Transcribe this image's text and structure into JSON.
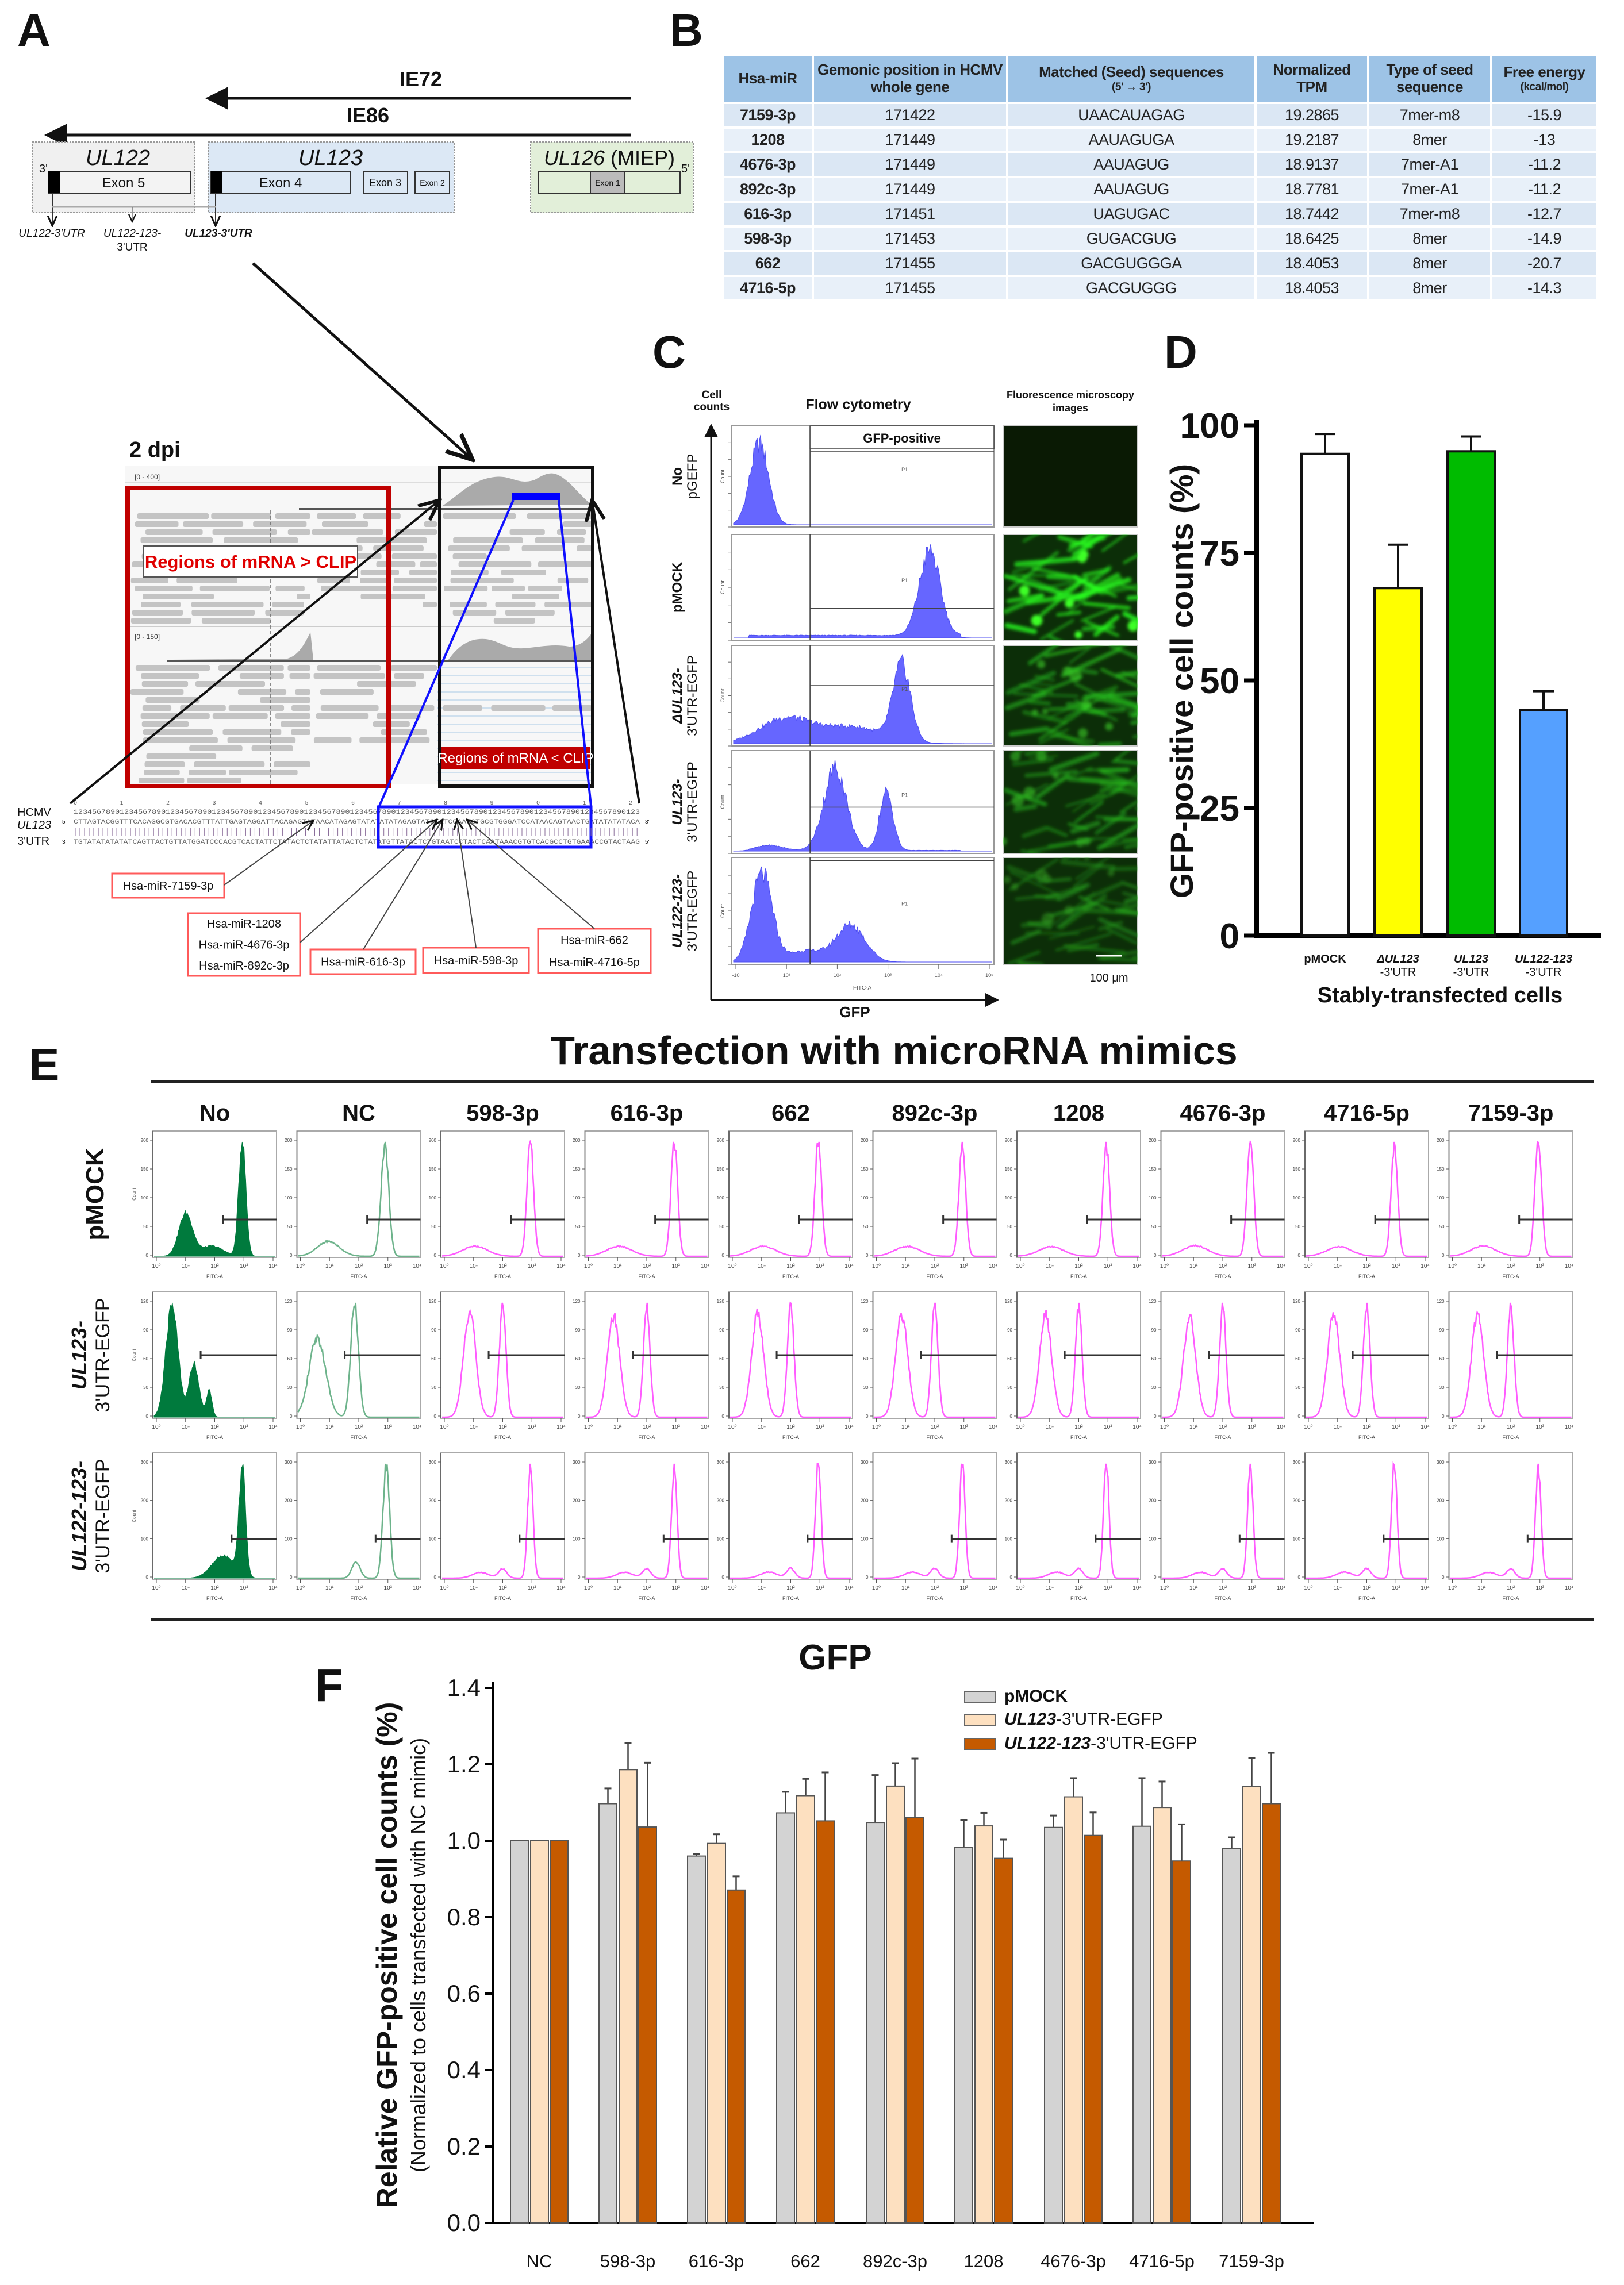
{
  "labels": {
    "A": "A",
    "B": "B",
    "C": "C",
    "D": "D",
    "E": "E",
    "F": "F"
  },
  "panel_a": {
    "ie72": "IE72",
    "ie86": "IE86",
    "ul122": "UL122",
    "ul123": "UL123",
    "ul126": "UL126",
    "ul126_suffix": "(MIEP)",
    "end3": "3'",
    "end5": "5'",
    "exons": [
      "Exon 5",
      "Exon 4",
      "Exon 3",
      "Exon 2",
      "Exon 1"
    ],
    "utr_labels": {
      "ul122": "UL122-3'UTR",
      "ul122_123_l1": "UL122-123-",
      "ul122_123_l2": "3'UTR",
      "ul123": "UL123-3'UTR"
    },
    "igv": {
      "dpi": "2 dpi",
      "range_top": "[0 - 400]",
      "range_bottom": "[0 - 150]",
      "label_more": "Regions of mRNA > CLIP",
      "label_less": "Regions of mRNA < CLIP"
    },
    "sequence": {
      "row_labels": [
        "HCMV",
        "UL123",
        "3'UTR"
      ],
      "ruler_digits": [
        "0",
        "1",
        "2",
        "3",
        "4",
        "5",
        "6",
        "7",
        "8",
        "9",
        "0",
        "1",
        "2"
      ],
      "ruler": "123456789012345678901234567890123456789012345678901234567890123456789012345678901234567890123456789012345678901234567890123",
      "top": "CTTAGTACGGTTTCACAGGCGTGACACGTTTATTGAGTAGGATTACAGAGTATAACATAGAGTATATATATAGAGTATCTATCCAATGTGCGTGGGATCCATAACAGTAACTGATATATATACA",
      "bottom": "TGTATATATATATCAGTTACTGTTATGGATCCCACGTCACTATTCTATACTCTATATTATACTCTATATGTTATACTCTGTAATCCTACTCAATAAACGTGTCACGCCTGTGAAACCGTACTAAG",
      "end5": "5'",
      "end3": "3'"
    },
    "mir_boxes": [
      [
        "Hsa-miR-7159-3p"
      ],
      [
        "Hsa-miR-1208",
        "Hsa-miR-4676-3p",
        "Hsa-miR-892c-3p"
      ],
      [
        "Hsa-miR-616-3p"
      ],
      [
        "Hsa-miR-598-3p"
      ],
      [
        "Hsa-miR-662",
        "Hsa-miR-4716-5p"
      ]
    ]
  },
  "panel_b": {
    "headers": [
      {
        "main": "Hsa-miR",
        "sub": ""
      },
      {
        "main": "Gemonic position in HCMV whole gene",
        "sub": ""
      },
      {
        "main": "Matched (Seed) sequences",
        "sub": "(5' → 3')"
      },
      {
        "main": "Normalized TPM",
        "sub": ""
      },
      {
        "main": "Type of seed sequence",
        "sub": ""
      },
      {
        "main": "Free energy",
        "sub": "(kcal/mol)"
      }
    ],
    "rows": [
      [
        "7159-3p",
        "171422",
        "UAACAUAGAG",
        "19.2865",
        "7mer-m8",
        "-15.9"
      ],
      [
        "1208",
        "171449",
        "AAUAGUGA",
        "19.2187",
        "8mer",
        "-13"
      ],
      [
        "4676-3p",
        "171449",
        "AAUAGUG",
        "18.9137",
        "7mer-A1",
        "-11.2"
      ],
      [
        "892c-3p",
        "171449",
        "AAUAGUG",
        "18.7781",
        "7mer-A1",
        "-11.2"
      ],
      [
        "616-3p",
        "171451",
        "UAGUGAC",
        "18.7442",
        "7mer-m8",
        "-12.7"
      ],
      [
        "598-3p",
        "171453",
        "GUGACGUG",
        "18.6425",
        "8mer",
        "-14.9"
      ],
      [
        "662",
        "171455",
        "GACGUGGGA",
        "18.4053",
        "8mer",
        "-20.7"
      ],
      [
        "4716-5p",
        "171455",
        "GACGUGGG",
        "18.4053",
        "8mer",
        "-14.3"
      ]
    ]
  },
  "panel_c": {
    "y_axis": [
      "Cell",
      "counts"
    ],
    "title": "Flow cytometry",
    "micro_title": [
      "Fluorescence microscopy",
      "images"
    ],
    "gate_label": "GFP-positive",
    "gate_name": "P1",
    "count_label": "Count",
    "fitc_label": "FITC-A",
    "x_axis": "GFP",
    "scale_bar": "100 μm",
    "x_ticks": [
      "-10",
      "10¹",
      "10²",
      "10³",
      "10⁴",
      "10⁵"
    ],
    "x_range_log": [
      -0.5,
      4.5
    ],
    "gate_log": 1.0,
    "fill_color": "#6666ff",
    "rows": [
      {
        "l1": "No",
        "l2": "pGEFP",
        "l1_italic": false,
        "peaks": [
          [
            0.0,
            1.0,
            0.18
          ]
        ],
        "floor": 0.0,
        "gate_level": 0.75
      },
      {
        "l1": "pMOCK",
        "l2": "",
        "l1_italic": false,
        "peaks": [
          [
            3.3,
            1.0,
            0.2
          ]
        ],
        "floor": 0.03,
        "gate_level": 0.3
      },
      {
        "l1": "ΔUL123-",
        "l2": "3'UTR-EGFP",
        "l1_italic": true,
        "peaks": [
          [
            2.76,
            1.0,
            0.17
          ],
          [
            0.5,
            0.33,
            0.5
          ],
          [
            1.8,
            0.22,
            0.6
          ]
        ],
        "floor": 0.0,
        "gate_level": 0.6
      },
      {
        "l1": "UL123-",
        "l2": "3'UTR-EGFP",
        "l1_italic": true,
        "peaks": [
          [
            1.47,
            1.0,
            0.22
          ],
          [
            2.46,
            0.7,
            0.13
          ],
          [
            0.2,
            0.06,
            0.25
          ]
        ],
        "floor": 0.01,
        "gate_level": 0.45
      },
      {
        "l1": "UL122-123-",
        "l2": "3'UTR-EGFP",
        "l1_italic": true,
        "peaks": [
          [
            0.05,
            1.0,
            0.2
          ],
          [
            1.77,
            0.42,
            0.28
          ],
          [
            0.9,
            0.13,
            0.35
          ]
        ],
        "floor": 0.0,
        "gate_level": 0.97
      }
    ],
    "micro_brightness": [
      0.05,
      1.0,
      0.6,
      0.55,
      0.4
    ]
  },
  "panel_e": {
    "title": "Transfection with microRNA mimics",
    "columns": [
      "No",
      "NC",
      "598-3p",
      "616-3p",
      "662",
      "892c-3p",
      "1208",
      "4676-3p",
      "4716-5p",
      "7159-3p"
    ],
    "count_label": "Count",
    "fitc_label": "FITC-A",
    "x_ticks": [
      "10⁰",
      "10¹",
      "10²",
      "10³",
      "10⁴"
    ],
    "x_range_log": [
      -0.2,
      4.2
    ],
    "colors": {
      "no_fill": "#007a3d",
      "nc_line": "#6db38b",
      "mimic_line": "#ff5cff"
    },
    "rows": [
      {
        "l1": "pMOCK",
        "l2": "",
        "y_ticks": [
          "0",
          "50",
          "100",
          "150",
          "200"
        ],
        "no": [
          [
            0.95,
            0.33,
            0.25
          ],
          [
            3.0,
            0.9,
            0.13
          ],
          [
            1.9,
            0.08,
            0.4
          ]
        ],
        "nc": [
          [
            0.9,
            0.12,
            0.4
          ],
          [
            2.95,
            0.9,
            0.14
          ]
        ],
        "mimic": [
          [
            1.0,
            0.08,
            0.45
          ],
          [
            3.0,
            0.92,
            0.12
          ]
        ],
        "gate": {
          "from_log": 2.3,
          "level": 0.3
        }
      },
      {
        "l1": "UL123-",
        "l2": "3'UTR-EGFP",
        "y_ticks": [
          "0",
          "30",
          "60",
          "90",
          "120"
        ],
        "no": [
          [
            0.45,
            0.95,
            0.22
          ],
          [
            1.25,
            0.45,
            0.18
          ],
          [
            1.8,
            0.22,
            0.1
          ]
        ],
        "nc": [
          [
            0.5,
            0.55,
            0.3
          ],
          [
            1.85,
            0.8,
            0.14
          ]
        ],
        "mimic": [
          [
            0.8,
            0.85,
            0.22
          ],
          [
            2.0,
            0.92,
            0.12
          ]
        ],
        "gate": {
          "from_log": 1.5,
          "level": 0.5
        }
      },
      {
        "l1": "UL122-123-",
        "l2": "3'UTR-EGFP",
        "y_ticks": [
          "0",
          "100",
          "200",
          "300"
        ],
        "no": [
          [
            2.3,
            0.2,
            0.4
          ],
          [
            3.0,
            0.95,
            0.12
          ]
        ],
        "nc": [
          [
            1.9,
            0.12,
            0.15
          ],
          [
            3.0,
            0.85,
            0.12
          ]
        ],
        "mimic": [
          [
            1.2,
            0.05,
            0.3
          ],
          [
            2.0,
            0.08,
            0.15
          ],
          [
            3.0,
            0.95,
            0.1
          ]
        ],
        "gate": {
          "from_log": 2.6,
          "level": 0.32
        }
      }
    ]
  },
  "chart_data": [
    {
      "panel": "D",
      "type": "bar",
      "categories": [
        {
          "l1": "pMOCK",
          "l2": ""
        },
        {
          "l1": "ΔUL123",
          "l2": "-3'UTR"
        },
        {
          "l1": "UL123",
          "l2": "-3'UTR"
        },
        {
          "l1": "UL122-123",
          "l2": "-3'UTR"
        }
      ],
      "values": [
        94.4,
        68.1,
        94.9,
        44.2
      ],
      "errors": [
        3.9,
        8.5,
        2.9,
        3.7
      ],
      "colors": [
        "#ffffff",
        "#ffff00",
        "#00bb00",
        "#55a0ff"
      ],
      "xlabel": "Stably-transfected cells",
      "ylabel": "GFP-positive cell counts (%)",
      "ylim": [
        0,
        100
      ],
      "yticks": [
        "0",
        "25",
        "50",
        "75",
        "100"
      ]
    },
    {
      "panel": "F",
      "type": "bar",
      "title": "GFP",
      "categories": [
        "NC",
        "598-3p",
        "616-3p",
        "662",
        "892c-3p",
        "1208",
        "4676-3p",
        "4716-5p",
        "7159-3p"
      ],
      "series": [
        {
          "name": "pMOCK",
          "name_italic": "",
          "color": "#d3d3d3",
          "values": [
            1.0,
            1.097,
            0.96,
            1.073,
            1.048,
            0.983,
            1.035,
            1.038,
            0.979
          ],
          "errors": [
            0,
            0.04,
            0.005,
            0.055,
            0.124,
            0.071,
            0.031,
            0.126,
            0.03
          ]
        },
        {
          "name": "-3'UTR-EGFP",
          "name_italic": "UL123",
          "color": "#fde0c0",
          "values": [
            1.0,
            1.186,
            0.993,
            1.118,
            1.143,
            1.039,
            1.115,
            1.087,
            1.142
          ],
          "errors": [
            0,
            0.07,
            0.024,
            0.044,
            0.06,
            0.034,
            0.049,
            0.068,
            0.074
          ]
        },
        {
          "name": "-3'UTR-EGFP",
          "name_italic": "UL122-123",
          "color": "#c55a00",
          "values": [
            1.0,
            1.036,
            0.871,
            1.052,
            1.061,
            0.954,
            1.014,
            0.947,
            1.097
          ],
          "errors": [
            0,
            0.168,
            0.036,
            0.127,
            0.154,
            0.049,
            0.06,
            0.096,
            0.133
          ]
        }
      ],
      "ylabel": "Relative GFP-positive cell counts (%)",
      "ylabel_sub": "(Normalized to cells transfected with NC mimic)",
      "ylim": [
        0,
        1.4
      ],
      "yticks": [
        "0.0",
        "0.2",
        "0.4",
        "0.6",
        "0.8",
        "1.0",
        "1.2",
        "1.4"
      ],
      "legend": "top-right"
    }
  ]
}
